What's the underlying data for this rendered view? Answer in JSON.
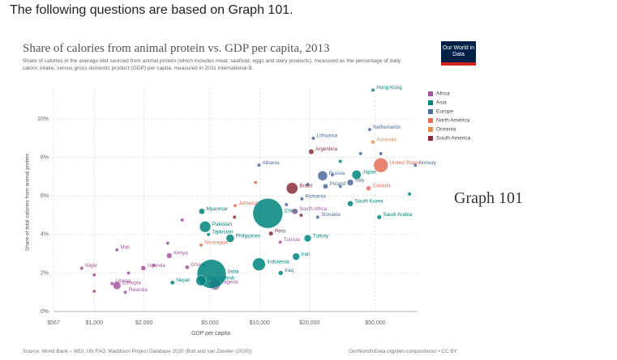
{
  "page": {
    "heading": "The following questions are based on Graph 101.",
    "side_label": "Graph 101",
    "logo": "Our World in Data"
  },
  "chart_data": {
    "type": "scatter",
    "title": "Share of calories from animal protein vs. GDP per capita, 2013",
    "subtitle": "Share of calories in the average diet sourced from animal protein (which includes meat, seafood, eggs and dairy products), measured as the percentage of daily caloric intake, versus gross domestic product (GDP) per capita, measured in 2011 international-$.",
    "x_label": "GDP per capita",
    "y_label": "Share of total calories from animal protein",
    "source": "Source: World Bank – WDI; UN FAO; Maddison Project Database 2020 (Bolt and van Zanden (2020))",
    "url": "OurWorldInData.org/diet-compositions/ • CC BY",
    "log_x": true,
    "grid": true,
    "legend": "right",
    "xlim": [
      567,
      90000
    ],
    "xticks": [
      {
        "value": 567,
        "label": "$567"
      },
      {
        "value": 1000,
        "label": "$1,000"
      },
      {
        "value": 2000,
        "label": "$2,000"
      },
      {
        "value": 5000,
        "label": "$5,000"
      },
      {
        "value": 10000,
        "label": "$10,000"
      },
      {
        "value": 20000,
        "label": "$20,000"
      },
      {
        "value": 50000,
        "label": "$50,000"
      }
    ],
    "ylim": [
      0,
      11.6
    ],
    "yticks": [
      {
        "value": 0,
        "label": "0%"
      },
      {
        "value": 2,
        "label": "2%"
      },
      {
        "value": 4,
        "label": "4%"
      },
      {
        "value": 6,
        "label": "6%"
      },
      {
        "value": 8,
        "label": "8%"
      },
      {
        "value": 10,
        "label": "10%"
      }
    ],
    "series": [
      {
        "name": "Africa",
        "color": "#a2559c",
        "labels": [
          "Niger",
          "Mali",
          "Uganda",
          "Kenya",
          "Ghana",
          "Nigeria",
          "Ethiopia",
          "Liberia",
          "Rwanda",
          "South Africa",
          "Tunisia",
          null,
          null,
          null,
          null,
          null,
          null
        ],
        "x": [
          840,
          1370,
          1980,
          2840,
          3640,
          5360,
          1370,
          1280,
          1540,
          16300,
          13300,
          1000,
          1610,
          2290,
          3400,
          2780,
          1000
        ],
        "values": [
          2.25,
          3.2,
          2.25,
          2.9,
          2.3,
          1.4,
          1.35,
          1.45,
          1.0,
          5.2,
          3.6,
          1.9,
          2.0,
          2.4,
          4.75,
          3.55,
          1.05
        ],
        "sizes": [
          18,
          16,
          37,
          44,
          26,
          173,
          95,
          4,
          11,
          53,
          11,
          10,
          15,
          20,
          5,
          8,
          12
        ]
      },
      {
        "name": "Asia",
        "color": "#00847e",
        "labels": [
          "Hong Kong",
          "Japan",
          "China",
          "South Korea",
          "Myanmar",
          "Pakistan",
          "Tajikistan",
          "Philippines",
          "Iran",
          "Indonesia",
          "India",
          "Iraq",
          "Nepal",
          "Bangladesh",
          "Saudi Arabia",
          "Turkey",
          null,
          null
        ],
        "x": [
          48400,
          38500,
          11200,
          35300,
          4470,
          4680,
          4900,
          6630,
          16600,
          9900,
          5120,
          13400,
          2970,
          4420,
          52800,
          19500,
          80500,
          30700
        ],
        "values": [
          11.5,
          7.1,
          5.1,
          5.6,
          5.2,
          4.4,
          4.0,
          3.8,
          2.85,
          2.45,
          1.95,
          2.0,
          1.5,
          1.6,
          4.9,
          3.8,
          6.1,
          7.8
        ],
        "sizes": [
          7,
          127,
          1360,
          50,
          52,
          190,
          8,
          100,
          77,
          250,
          1280,
          34,
          27,
          157,
          30,
          76,
          3,
          5
        ]
      },
      {
        "name": "Europe",
        "color": "#4c6a9c",
        "labels": [
          "Netherlands",
          "Lithuania",
          "Norway",
          "Albania",
          "Russia",
          "Italy",
          "Poland",
          "Romania",
          "Slovakia",
          null,
          null,
          null,
          null,
          null,
          null
        ],
        "x": [
          46200,
          21100,
          87300,
          9900,
          24000,
          35300,
          25000,
          18000,
          22400,
          30700,
          40700,
          54000,
          27500,
          19500,
          14500
        ],
        "values": [
          9.45,
          9.0,
          7.6,
          7.6,
          7.05,
          6.7,
          6.5,
          5.85,
          4.9,
          6.5,
          8.2,
          8.2,
          7.1,
          6.6,
          5.55
        ],
        "sizes": [
          17,
          3,
          5,
          3,
          144,
          60,
          38,
          20,
          5,
          10,
          8,
          6,
          11,
          9,
          7
        ]
      },
      {
        "name": "North America",
        "color": "#e56e5a",
        "labels": [
          "United States",
          "Canada",
          "Jamaica",
          "Nicaragua",
          null
        ],
        "x": [
          54000,
          45500,
          7100,
          4420,
          9440
        ],
        "values": [
          7.6,
          6.4,
          5.5,
          3.45,
          6.7
        ],
        "sizes": [
          316,
          35,
          3,
          6,
          3
        ]
      },
      {
        "name": "Oceania",
        "color": "#e28d4a",
        "labels": [
          "Australia"
        ],
        "x": [
          48400
        ],
        "values": [
          8.8
        ],
        "sizes": [
          23
        ]
      },
      {
        "name": "South America",
        "color": "#883039",
        "labels": [
          "Argentina",
          "Brazil",
          "Peru",
          null,
          null
        ],
        "x": [
          20500,
          15700,
          11700,
          17800,
          7040
        ],
        "values": [
          8.3,
          6.4,
          4.05,
          5.0,
          4.9
        ],
        "sizes": [
          42,
          201,
          30,
          17,
          10
        ]
      }
    ]
  }
}
